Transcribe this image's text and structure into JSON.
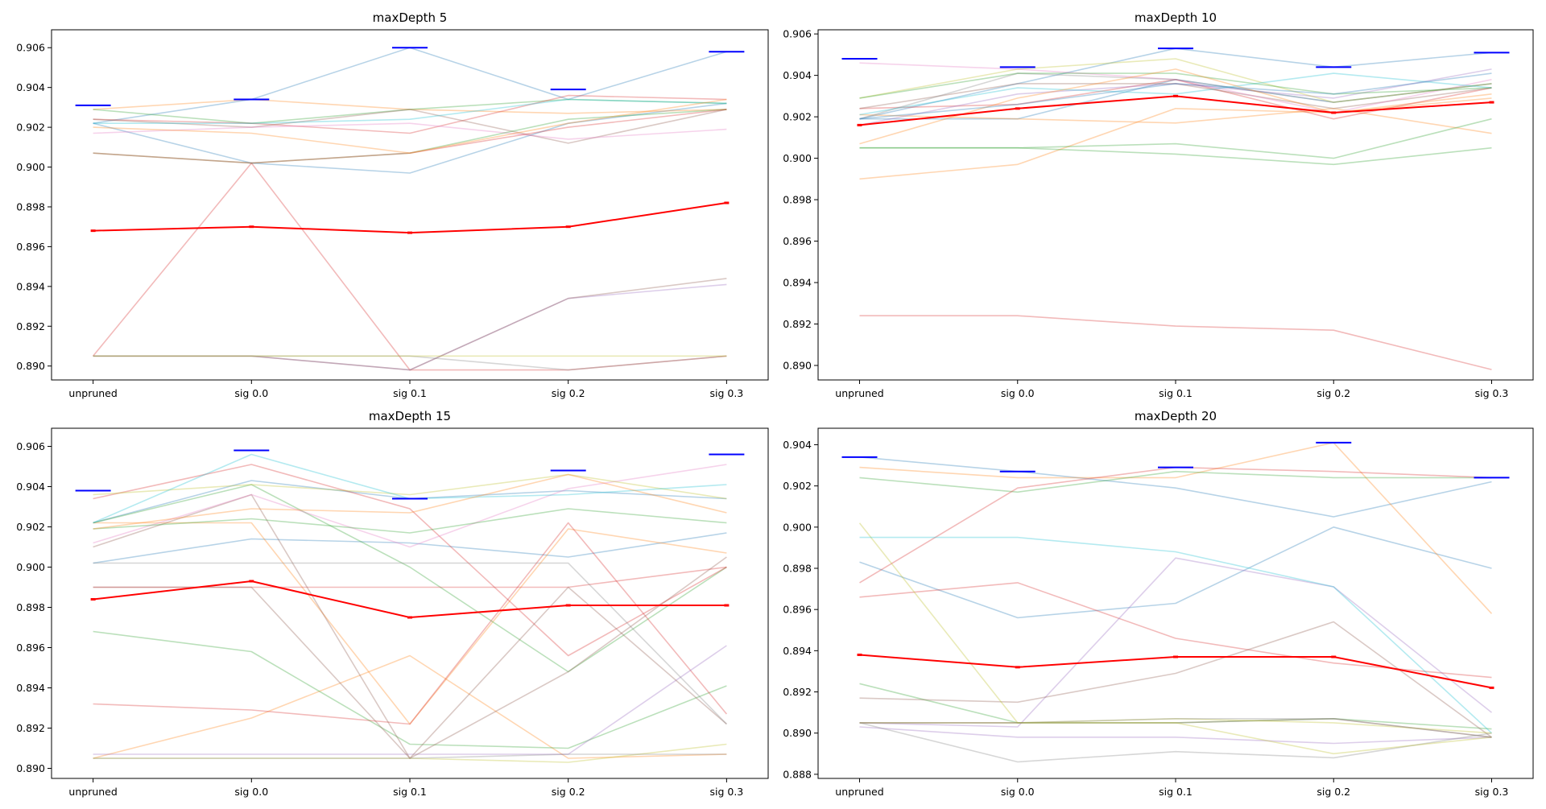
{
  "chart_data": [
    {
      "type": "line",
      "title": "maxDepth 5",
      "xlabel": "",
      "ylabel": "",
      "categories": [
        "unpruned",
        "sig 0.0",
        "sig 0.1",
        "sig 0.2",
        "sig 0.3"
      ],
      "ylim": [
        0.8893,
        0.9069
      ],
      "yticks": [
        "0.890",
        "0.892",
        "0.894",
        "0.896",
        "0.898",
        "0.900",
        "0.902",
        "0.904",
        "0.906"
      ],
      "grid": false,
      "mean": [
        0.8968,
        0.897,
        0.8967,
        0.897,
        0.8982
      ],
      "best": [
        0.9031,
        0.9034,
        0.906,
        0.9039,
        0.9058
      ],
      "series": [
        {
          "color": "#1f77b4",
          "values": [
            0.9022,
            0.9034,
            0.906,
            0.9034,
            0.9058
          ]
        },
        {
          "color": "#1f77b4",
          "values": [
            0.9022,
            0.9002,
            0.8997,
            0.9022,
            0.9032
          ]
        },
        {
          "color": "#ff7f0e",
          "values": [
            0.9029,
            0.9034,
            0.9029,
            0.9027,
            0.9029
          ]
        },
        {
          "color": "#2ca02c",
          "values": [
            0.9029,
            0.9022,
            0.9029,
            0.9034,
            0.9032
          ]
        },
        {
          "color": "#d62728",
          "values": [
            0.8905,
            0.9002,
            0.8898,
            0.8898,
            0.8905
          ]
        },
        {
          "color": "#d62728",
          "values": [
            0.9024,
            0.9022,
            0.9017,
            0.9036,
            0.9034
          ]
        },
        {
          "color": "#9467bd",
          "values": [
            0.8905,
            0.8905,
            0.8898,
            0.8934,
            0.8941
          ]
        },
        {
          "color": "#8c564b",
          "values": [
            0.9024,
            0.902,
            0.9029,
            0.9012,
            0.9029
          ]
        },
        {
          "color": "#8c564b",
          "values": [
            0.8905,
            0.8905,
            0.8898,
            0.8934,
            0.8944
          ]
        },
        {
          "color": "#e377c2",
          "values": [
            0.9017,
            0.902,
            0.9022,
            0.9014,
            0.9019
          ]
        },
        {
          "color": "#7f7f7f",
          "values": [
            0.8905,
            0.8905,
            0.8905,
            0.8898,
            0.8905
          ]
        },
        {
          "color": "#bcbd22",
          "values": [
            0.8905,
            0.8905,
            0.8905,
            0.8905,
            0.8905
          ]
        },
        {
          "color": "#17becf",
          "values": [
            0.9022,
            0.9022,
            0.9024,
            0.9034,
            0.9032
          ]
        },
        {
          "color": "#2ca02c",
          "values": [
            0.9007,
            0.9002,
            0.9007,
            0.9024,
            0.9029
          ]
        },
        {
          "color": "#d62728",
          "values": [
            0.9007,
            0.9002,
            0.9007,
            0.902,
            0.9029
          ]
        },
        {
          "color": "#ff7f0e",
          "values": [
            0.902,
            0.9017,
            0.9007,
            0.9022,
            0.9034
          ]
        }
      ]
    },
    {
      "type": "line",
      "title": "maxDepth 10",
      "xlabel": "",
      "ylabel": "",
      "categories": [
        "unpruned",
        "sig 0.0",
        "sig 0.1",
        "sig 0.2",
        "sig 0.3"
      ],
      "ylim": [
        0.8893,
        0.9062
      ],
      "yticks": [
        "0.890",
        "0.892",
        "0.894",
        "0.896",
        "0.898",
        "0.900",
        "0.902",
        "0.904",
        "0.906"
      ],
      "grid": false,
      "mean": [
        0.9016,
        0.9024,
        0.903,
        0.9022,
        0.9027
      ],
      "best": [
        0.9048,
        0.9044,
        0.9053,
        0.9044,
        0.9051
      ],
      "series": [
        {
          "color": "#1f77b4",
          "values": [
            0.9019,
            0.9036,
            0.9053,
            0.9044,
            0.9051
          ]
        },
        {
          "color": "#1f77b4",
          "values": [
            0.9019,
            0.9019,
            0.9038,
            0.9027,
            0.9036
          ]
        },
        {
          "color": "#ff7f0e",
          "values": [
            0.899,
            0.8997,
            0.9024,
            0.9022,
            0.9031
          ]
        },
        {
          "color": "#ff7f0e",
          "values": [
            0.9021,
            0.9019,
            0.9017,
            0.9024,
            0.9012
          ]
        },
        {
          "color": "#2ca02c",
          "values": [
            0.9005,
            0.9005,
            0.9002,
            0.8997,
            0.9005
          ]
        },
        {
          "color": "#2ca02c",
          "values": [
            0.9005,
            0.9005,
            0.9007,
            0.9,
            0.9019
          ]
        },
        {
          "color": "#d62728",
          "values": [
            0.8924,
            0.8924,
            0.8919,
            0.8917,
            0.8898
          ]
        },
        {
          "color": "#d62728",
          "values": [
            0.9024,
            0.9026,
            0.9038,
            0.9019,
            0.9034
          ]
        },
        {
          "color": "#9467bd",
          "values": [
            0.9016,
            0.9031,
            0.9036,
            0.9029,
            0.9043
          ]
        },
        {
          "color": "#8c564b",
          "values": [
            0.9024,
            0.9036,
            0.9036,
            0.9024,
            0.9034
          ]
        },
        {
          "color": "#e377c2",
          "values": [
            0.9046,
            0.9043,
            0.9038,
            0.9022,
            0.9038
          ]
        },
        {
          "color": "#7f7f7f",
          "values": [
            0.9019,
            0.9041,
            0.9038,
            0.9027,
            0.9036
          ]
        },
        {
          "color": "#bcbd22",
          "values": [
            0.9029,
            0.9043,
            0.9048,
            0.9027,
            0.9036
          ]
        },
        {
          "color": "#17becf",
          "values": [
            0.9021,
            0.9034,
            0.9031,
            0.9041,
            0.9034
          ]
        },
        {
          "color": "#2ca02c",
          "values": [
            0.9029,
            0.9041,
            0.9041,
            0.9031,
            0.9034
          ]
        },
        {
          "color": "#ff7f0e",
          "values": [
            0.9007,
            0.9029,
            0.9043,
            0.9022,
            0.9029
          ]
        },
        {
          "color": "#1f77b4",
          "values": [
            0.9019,
            0.9026,
            0.9036,
            0.9031,
            0.9041
          ]
        }
      ]
    },
    {
      "type": "line",
      "title": "maxDepth 15",
      "xlabel": "",
      "ylabel": "",
      "categories": [
        "unpruned",
        "sig 0.0",
        "sig 0.1",
        "sig 0.2",
        "sig 0.3"
      ],
      "ylim": [
        0.8895,
        0.9069
      ],
      "yticks": [
        "0.890",
        "0.892",
        "0.894",
        "0.896",
        "0.898",
        "0.900",
        "0.902",
        "0.904",
        "0.906"
      ],
      "grid": false,
      "mean": [
        0.8984,
        0.8993,
        0.8975,
        0.8981,
        0.8981
      ],
      "best": [
        0.9038,
        0.9058,
        0.9034,
        0.9048,
        0.9056
      ],
      "series": [
        {
          "color": "#1f77b4",
          "values": [
            0.9022,
            0.9043,
            0.9034,
            0.9038,
            0.9034
          ]
        },
        {
          "color": "#1f77b4",
          "values": [
            0.9002,
            0.9014,
            0.9012,
            0.9005,
            0.9017
          ]
        },
        {
          "color": "#ff7f0e",
          "values": [
            0.8905,
            0.8925,
            0.8956,
            0.8905,
            0.8907
          ]
        },
        {
          "color": "#ff7f0e",
          "values": [
            0.9022,
            0.9022,
            0.8922,
            0.9019,
            0.9007
          ]
        },
        {
          "color": "#2ca02c",
          "values": [
            0.8968,
            0.8958,
            0.8912,
            0.891,
            0.8941
          ]
        },
        {
          "color": "#2ca02c",
          "values": [
            0.9022,
            0.9041,
            0.9,
            0.8948,
            0.9
          ]
        },
        {
          "color": "#d62728",
          "values": [
            0.8932,
            0.8929,
            0.8922,
            0.9022,
            0.8927
          ]
        },
        {
          "color": "#d62728",
          "values": [
            0.9034,
            0.9051,
            0.9029,
            0.8956,
            0.9
          ]
        },
        {
          "color": "#d62728",
          "values": [
            0.899,
            0.899,
            0.899,
            0.899,
            0.9
          ]
        },
        {
          "color": "#9467bd",
          "values": [
            0.8907,
            0.8907,
            0.8907,
            0.8907,
            0.8961
          ]
        },
        {
          "color": "#8c564b",
          "values": [
            0.901,
            0.9036,
            0.8905,
            0.899,
            0.8922
          ]
        },
        {
          "color": "#e377c2",
          "values": [
            0.9012,
            0.9036,
            0.901,
            0.9039,
            0.9051
          ]
        },
        {
          "color": "#7f7f7f",
          "values": [
            0.9002,
            0.9002,
            0.9002,
            0.9002,
            0.8922
          ]
        },
        {
          "color": "#bcbd22",
          "values": [
            0.9036,
            0.9041,
            0.9036,
            0.9046,
            0.9034
          ]
        },
        {
          "color": "#17becf",
          "values": [
            0.9022,
            0.9056,
            0.9034,
            0.9036,
            0.9041
          ]
        },
        {
          "color": "#8c564b",
          "values": [
            0.899,
            0.899,
            0.8905,
            0.8948,
            0.9005
          ]
        },
        {
          "color": "#bcbd22",
          "values": [
            0.8905,
            0.8905,
            0.8905,
            0.8903,
            0.8912
          ]
        },
        {
          "color": "#7f7f7f",
          "values": [
            0.8905,
            0.8905,
            0.8905,
            0.8907,
            0.8907
          ]
        },
        {
          "color": "#2ca02c",
          "values": [
            0.9019,
            0.9024,
            0.9017,
            0.9029,
            0.9022
          ]
        },
        {
          "color": "#ff7f0e",
          "values": [
            0.9019,
            0.9029,
            0.9027,
            0.9046,
            0.9027
          ]
        }
      ]
    },
    {
      "type": "line",
      "title": "maxDepth 20",
      "xlabel": "",
      "ylabel": "",
      "categories": [
        "unpruned",
        "sig 0.0",
        "sig 0.1",
        "sig 0.2",
        "sig 0.3"
      ],
      "ylim": [
        0.8878,
        0.9048
      ],
      "yticks": [
        "0.888",
        "0.890",
        "0.892",
        "0.894",
        "0.896",
        "0.898",
        "0.900",
        "0.902",
        "0.904"
      ],
      "grid": false,
      "mean": [
        0.8938,
        0.8932,
        0.8937,
        0.8937,
        0.8922
      ],
      "best": [
        0.9034,
        0.9027,
        0.9029,
        0.9041,
        0.9024
      ],
      "series": [
        {
          "color": "#1f77b4",
          "values": [
            0.9034,
            0.9027,
            0.9019,
            0.9005,
            0.9022
          ]
        },
        {
          "color": "#1f77b4",
          "values": [
            0.8983,
            0.8956,
            0.8963,
            0.9,
            0.898
          ]
        },
        {
          "color": "#ff7f0e",
          "values": [
            0.9029,
            0.9024,
            0.9024,
            0.9041,
            0.8958
          ]
        },
        {
          "color": "#2ca02c",
          "values": [
            0.9024,
            0.9017,
            0.9027,
            0.9024,
            0.9024
          ]
        },
        {
          "color": "#2ca02c",
          "values": [
            0.8924,
            0.8905,
            0.8905,
            0.8907,
            0.8902
          ]
        },
        {
          "color": "#d62728",
          "values": [
            0.8973,
            0.9019,
            0.9029,
            0.9027,
            0.9024
          ]
        },
        {
          "color": "#d62728",
          "values": [
            0.8966,
            0.8973,
            0.8946,
            0.8934,
            0.8927
          ]
        },
        {
          "color": "#9467bd",
          "values": [
            0.8905,
            0.8903,
            0.8985,
            0.8971,
            0.891
          ]
        },
        {
          "color": "#9467bd",
          "values": [
            0.8903,
            0.8898,
            0.8898,
            0.8895,
            0.8898
          ]
        },
        {
          "color": "#8c564b",
          "values": [
            0.8917,
            0.8915,
            0.8929,
            0.8954,
            0.8898
          ]
        },
        {
          "color": "#8c564b",
          "values": [
            0.8905,
            0.8905,
            0.8905,
            0.8907,
            0.8898
          ]
        },
        {
          "color": "#7f7f7f",
          "values": [
            0.8905,
            0.8886,
            0.8891,
            0.8888,
            0.89
          ]
        },
        {
          "color": "#bcbd22",
          "values": [
            0.9002,
            0.8905,
            0.8905,
            0.889,
            0.8898
          ]
        },
        {
          "color": "#17becf",
          "values": [
            0.8995,
            0.8995,
            0.8988,
            0.8971,
            0.89
          ]
        },
        {
          "color": "#bcbd22",
          "values": [
            0.8905,
            0.8905,
            0.8907,
            0.8905,
            0.89
          ]
        },
        {
          "color": "#7f7f7f",
          "values": [
            0.8905,
            0.8905,
            0.8907,
            0.8907,
            0.8898
          ]
        }
      ]
    }
  ],
  "colors": {
    "mean_line": "#ff0000",
    "best_marker": "#0000ff",
    "background": "#ffffff",
    "series_opacity": 0.32
  }
}
